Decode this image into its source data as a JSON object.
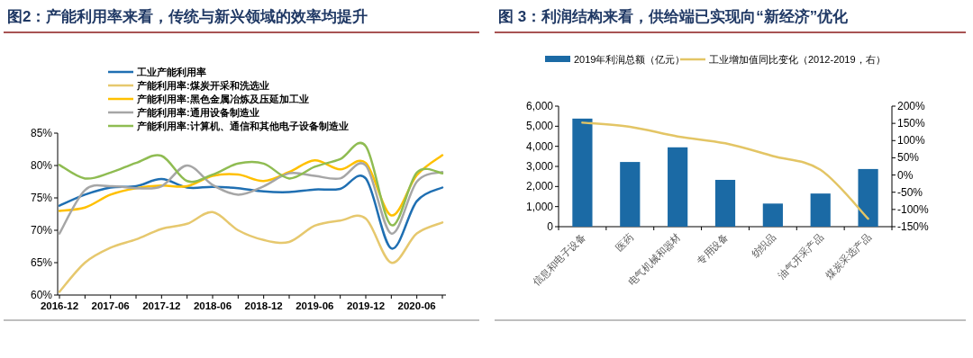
{
  "chart_data": [
    {
      "type": "line",
      "title": "图2：产能利用率来看，传统与新兴领域的效率均提升",
      "legend": "top",
      "grid": false,
      "categories": [
        "2016-12",
        null,
        "2017-06",
        null,
        "2017-12",
        null,
        "2018-06",
        null,
        "2018-12",
        null,
        "2019-06",
        null,
        "2019-12",
        null,
        "2020-06",
        null
      ],
      "ylim": [
        60,
        85
      ],
      "yticks": [
        {
          "value": 60,
          "label": "60%"
        },
        {
          "value": 65,
          "label": "65%"
        },
        {
          "value": 70,
          "label": "70%"
        },
        {
          "value": 75,
          "label": "75%"
        },
        {
          "value": 80,
          "label": "80%"
        },
        {
          "value": 85,
          "label": "85%"
        }
      ],
      "series": [
        {
          "name": "工业产能利用率",
          "color": "#1f6fb2",
          "values": [
            73.8,
            75.5,
            76.6,
            76.8,
            77.9,
            76.6,
            76.7,
            76.5,
            76.0,
            75.9,
            76.3,
            76.4,
            78.0,
            67.2,
            74.5,
            76.6
          ]
        },
        {
          "name": "产能利用率:煤炭开采和洗选业",
          "color": "#e6c86e",
          "values": [
            60.5,
            65.0,
            67.3,
            68.6,
            70.2,
            71.0,
            72.8,
            70.0,
            68.5,
            68.2,
            70.7,
            71.5,
            71.8,
            65.0,
            69.5,
            71.2
          ]
        },
        {
          "name": "产能利用率:黑色金属冶炼及压延加工业",
          "color": "#ffc000",
          "values": [
            73.0,
            73.5,
            75.5,
            76.5,
            76.9,
            76.8,
            78.4,
            78.6,
            77.6,
            79.0,
            80.8,
            79.4,
            80.4,
            72.3,
            78.5,
            81.6
          ]
        },
        {
          "name": "产能利用率:通用设备制造业",
          "color": "#a6a6a6",
          "values": [
            69.5,
            76.2,
            76.8,
            76.5,
            76.8,
            80.0,
            77.0,
            75.5,
            76.8,
            78.8,
            78.4,
            78.0,
            80.0,
            69.5,
            77.5,
            79.0
          ]
        },
        {
          "name": "产能利用率:计算机、通信和其他电子设备制造业",
          "color": "#8fbc52",
          "values": [
            80.1,
            78.0,
            78.9,
            80.4,
            81.5,
            77.6,
            78.6,
            80.3,
            80.3,
            78.0,
            79.8,
            81.0,
            83.0,
            70.8,
            78.9,
            78.8
          ]
        }
      ]
    },
    {
      "type": "bar",
      "title": "图 3：利润结构来看，供给端已实现向“新经济”优化",
      "legend": "top",
      "grid": false,
      "categories": [
        "信息和电子设备",
        "医药",
        "电气机械和器材",
        "专用设备",
        "纺织品",
        "油气开采产品",
        "煤炭采选产品"
      ],
      "ylim": [
        0,
        6000
      ],
      "yticks": [
        0,
        {
          "value": 1000,
          "label": "1,000"
        },
        {
          "value": 2000,
          "label": "2,000"
        },
        {
          "value": 3000,
          "label": "3,000"
        },
        {
          "value": 4000,
          "label": "4,000"
        },
        {
          "value": 5000,
          "label": "5,000"
        },
        {
          "value": 6000,
          "label": "6,000"
        }
      ],
      "y2lim": [
        -150,
        200
      ],
      "y2ticks": [
        {
          "value": -150,
          "label": "-150%"
        },
        {
          "value": -100,
          "label": "-100%"
        },
        {
          "value": -50,
          "label": "-50%"
        },
        {
          "value": 0,
          "label": "0%"
        },
        {
          "value": 50,
          "label": "50%"
        },
        {
          "value": 100,
          "label": "100%"
        },
        {
          "value": 150,
          "label": "150%"
        },
        {
          "value": 200,
          "label": "200%"
        }
      ],
      "series": [
        {
          "name": "2019年利润总额（亿元）",
          "color": "#1b6aa5",
          "values": [
            5380,
            3220,
            3950,
            2330,
            1150,
            1650,
            2870
          ]
        },
        {
          "name": "工业增加值同比变化（2012-2019，右）",
          "type": "line",
          "axis": "y2",
          "color": "#e3c565",
          "values": [
            152,
            140,
            112,
            92,
            55,
            15,
            -127
          ]
        }
      ]
    }
  ]
}
